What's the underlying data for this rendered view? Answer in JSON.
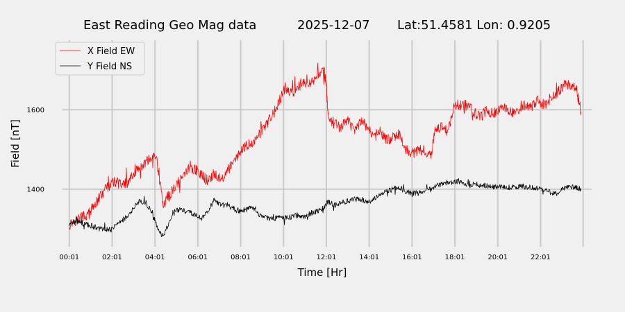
{
  "chart_data": {
    "type": "line",
    "title_parts": {
      "station": "East Reading Geo Mag data",
      "date": "2025-12-07",
      "location": "Lat:51.4581  Lon: 0.9205"
    },
    "xlabel": "Time  [Hr]",
    "ylabel": "Field  [nT]",
    "x_unit": "hours",
    "xlim": [
      -0.3,
      24.4
    ],
    "ylim": [
      1255,
      1775
    ],
    "x_ticks": [
      {
        "x": 0.0167,
        "label": "00:01"
      },
      {
        "x": 2.0167,
        "label": "02:01"
      },
      {
        "x": 4.0167,
        "label": "04:01"
      },
      {
        "x": 6.0167,
        "label": "06:01"
      },
      {
        "x": 8.0167,
        "label": "08:01"
      },
      {
        "x": 10.0167,
        "label": "10:01"
      },
      {
        "x": 12.0167,
        "label": "12:01"
      },
      {
        "x": 14.0167,
        "label": "14:01"
      },
      {
        "x": 16.0167,
        "label": "16:01"
      },
      {
        "x": 18.0167,
        "label": "18:01"
      },
      {
        "x": 20.0167,
        "label": "20:01"
      },
      {
        "x": 22.0167,
        "label": "22:01"
      }
    ],
    "extra_vertical_grid": [
      24.0
    ],
    "y_ticks": [
      {
        "y": 1400,
        "label": "1400"
      },
      {
        "y": 1600,
        "label": "1600"
      }
    ],
    "grid": true,
    "legend_position": "top-left",
    "series": [
      {
        "name": "X Field EW",
        "color": "#ff0000",
        "points": [
          [
            0.0,
            1310
          ],
          [
            0.3,
            1322
          ],
          [
            0.6,
            1330
          ],
          [
            0.9,
            1335
          ],
          [
            1.2,
            1360
          ],
          [
            1.5,
            1385
          ],
          [
            1.8,
            1405
          ],
          [
            2.1,
            1420
          ],
          [
            2.4,
            1410
          ],
          [
            2.7,
            1415
          ],
          [
            3.0,
            1440
          ],
          [
            3.3,
            1450
          ],
          [
            3.6,
            1468
          ],
          [
            3.9,
            1482
          ],
          [
            4.1,
            1470
          ],
          [
            4.4,
            1360
          ],
          [
            4.7,
            1385
          ],
          [
            5.0,
            1410
          ],
          [
            5.3,
            1430
          ],
          [
            5.6,
            1455
          ],
          [
            5.9,
            1450
          ],
          [
            6.2,
            1435
          ],
          [
            6.5,
            1420
          ],
          [
            6.8,
            1440
          ],
          [
            7.1,
            1425
          ],
          [
            7.4,
            1445
          ],
          [
            7.7,
            1470
          ],
          [
            8.0,
            1490
          ],
          [
            8.3,
            1510
          ],
          [
            8.6,
            1515
          ],
          [
            8.9,
            1540
          ],
          [
            9.2,
            1560
          ],
          [
            9.5,
            1585
          ],
          [
            9.8,
            1620
          ],
          [
            10.1,
            1655
          ],
          [
            10.4,
            1640
          ],
          [
            10.7,
            1660
          ],
          [
            11.0,
            1670
          ],
          [
            11.3,
            1665
          ],
          [
            11.6,
            1690
          ],
          [
            11.9,
            1700
          ],
          [
            12.0,
            1670
          ],
          [
            12.1,
            1580
          ],
          [
            12.4,
            1565
          ],
          [
            12.7,
            1555
          ],
          [
            13.0,
            1575
          ],
          [
            13.3,
            1545
          ],
          [
            13.6,
            1570
          ],
          [
            13.9,
            1560
          ],
          [
            14.2,
            1535
          ],
          [
            14.5,
            1545
          ],
          [
            14.8,
            1525
          ],
          [
            15.1,
            1530
          ],
          [
            15.4,
            1540
          ],
          [
            15.7,
            1500
          ],
          [
            16.0,
            1490
          ],
          [
            16.3,
            1495
          ],
          [
            16.6,
            1500
          ],
          [
            16.9,
            1485
          ],
          [
            17.1,
            1550
          ],
          [
            17.4,
            1560
          ],
          [
            17.7,
            1545
          ],
          [
            18.0,
            1615
          ],
          [
            18.3,
            1610
          ],
          [
            18.6,
            1612
          ],
          [
            18.9,
            1595
          ],
          [
            19.2,
            1580
          ],
          [
            19.5,
            1600
          ],
          [
            19.8,
            1590
          ],
          [
            20.1,
            1600
          ],
          [
            20.4,
            1605
          ],
          [
            20.7,
            1595
          ],
          [
            21.0,
            1600
          ],
          [
            21.3,
            1610
          ],
          [
            21.6,
            1605
          ],
          [
            21.9,
            1625
          ],
          [
            22.2,
            1610
          ],
          [
            22.5,
            1630
          ],
          [
            22.8,
            1645
          ],
          [
            23.1,
            1660
          ],
          [
            23.4,
            1665
          ],
          [
            23.7,
            1650
          ],
          [
            23.9,
            1595
          ]
        ]
      },
      {
        "name": "Y Field NS",
        "color": "#000000",
        "points": [
          [
            0.0,
            1310
          ],
          [
            0.3,
            1320
          ],
          [
            0.6,
            1315
          ],
          [
            0.9,
            1310
          ],
          [
            1.2,
            1305
          ],
          [
            1.5,
            1300
          ],
          [
            1.8,
            1298
          ],
          [
            2.1,
            1305
          ],
          [
            2.4,
            1320
          ],
          [
            2.7,
            1330
          ],
          [
            3.0,
            1350
          ],
          [
            3.3,
            1370
          ],
          [
            3.6,
            1365
          ],
          [
            3.9,
            1340
          ],
          [
            4.1,
            1305
          ],
          [
            4.4,
            1280
          ],
          [
            4.7,
            1320
          ],
          [
            5.0,
            1345
          ],
          [
            5.3,
            1350
          ],
          [
            5.6,
            1345
          ],
          [
            5.9,
            1335
          ],
          [
            6.2,
            1325
          ],
          [
            6.5,
            1345
          ],
          [
            6.8,
            1375
          ],
          [
            7.1,
            1360
          ],
          [
            7.4,
            1360
          ],
          [
            7.7,
            1350
          ],
          [
            8.0,
            1345
          ],
          [
            8.3,
            1350
          ],
          [
            8.6,
            1355
          ],
          [
            8.9,
            1335
          ],
          [
            9.2,
            1330
          ],
          [
            9.5,
            1325
          ],
          [
            9.8,
            1330
          ],
          [
            10.1,
            1328
          ],
          [
            10.4,
            1330
          ],
          [
            10.7,
            1335
          ],
          [
            11.0,
            1330
          ],
          [
            11.3,
            1340
          ],
          [
            11.6,
            1345
          ],
          [
            11.9,
            1355
          ],
          [
            12.1,
            1370
          ],
          [
            12.4,
            1360
          ],
          [
            12.7,
            1365
          ],
          [
            13.0,
            1370
          ],
          [
            13.3,
            1375
          ],
          [
            13.6,
            1375
          ],
          [
            13.9,
            1370
          ],
          [
            14.2,
            1372
          ],
          [
            14.5,
            1385
          ],
          [
            14.8,
            1395
          ],
          [
            15.1,
            1400
          ],
          [
            15.4,
            1405
          ],
          [
            15.7,
            1395
          ],
          [
            16.0,
            1390
          ],
          [
            16.3,
            1390
          ],
          [
            16.6,
            1395
          ],
          [
            16.9,
            1400
          ],
          [
            17.2,
            1410
          ],
          [
            17.5,
            1415
          ],
          [
            17.8,
            1418
          ],
          [
            18.1,
            1420
          ],
          [
            18.4,
            1415
          ],
          [
            18.7,
            1410
          ],
          [
            19.0,
            1412
          ],
          [
            19.3,
            1410
          ],
          [
            19.6,
            1408
          ],
          [
            19.9,
            1405
          ],
          [
            20.2,
            1405
          ],
          [
            20.5,
            1405
          ],
          [
            20.8,
            1405
          ],
          [
            21.1,
            1408
          ],
          [
            21.4,
            1405
          ],
          [
            21.7,
            1405
          ],
          [
            22.0,
            1400
          ],
          [
            22.3,
            1395
          ],
          [
            22.6,
            1390
          ],
          [
            22.9,
            1395
          ],
          [
            23.2,
            1405
          ],
          [
            23.5,
            1405
          ],
          [
            23.8,
            1402
          ],
          [
            23.9,
            1402
          ]
        ]
      }
    ]
  }
}
